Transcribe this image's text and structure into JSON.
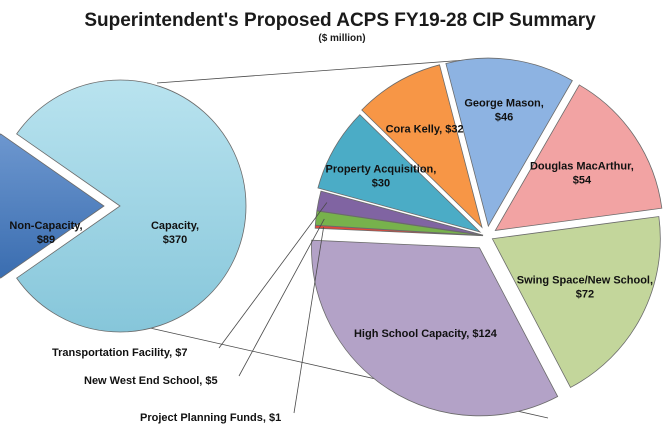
{
  "chart_data": {
    "type": "pie",
    "title": "Superintendent's Proposed ACPS FY19-28 CIP Summary",
    "subtitle": "($ million)",
    "main_pie": {
      "slices": [
        {
          "label": "Non-Capacity",
          "value_text": "$89",
          "value": 89,
          "color": "#4f81bd"
        },
        {
          "label": "Capacity",
          "value_text": "$370",
          "value": 370,
          "color": "#93cddd"
        }
      ]
    },
    "breakdown_pie": {
      "parent": "Capacity",
      "slices": [
        {
          "label": "Douglas MacArthur",
          "value_text": "$54",
          "value": 54,
          "color": "#f2a3a3"
        },
        {
          "label": "Swing Space/New School",
          "value_text": "$72",
          "value": 72,
          "color": "#c3d69b"
        },
        {
          "label": "High School Capacity",
          "value_text": "$124",
          "value": 124,
          "color": "#b3a2c7"
        },
        {
          "label": "Project Planning Funds",
          "value_text": "$1",
          "value": 1,
          "color": "#e0473a"
        },
        {
          "label": "New West End School",
          "value_text": "$5",
          "value": 5,
          "color": "#77b24c"
        },
        {
          "label": "Transportation Facility",
          "value_text": "$7",
          "value": 7,
          "color": "#8064a2"
        },
        {
          "label": "Property Acquisition",
          "value_text": "$30",
          "value": 30,
          "color": "#4bacc6"
        },
        {
          "label": "Cora Kelly",
          "value_text": "$32",
          "value": 32,
          "color": "#f79646"
        },
        {
          "label": "George Mason",
          "value_text": "$46",
          "value": 46,
          "color": "#8db3e2"
        }
      ]
    }
  }
}
